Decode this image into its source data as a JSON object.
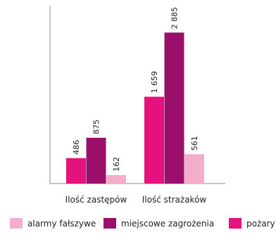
{
  "chart_data": {
    "type": "bar",
    "categories": [
      "Ilość zastępów",
      "Ilość strażaków"
    ],
    "series": [
      {
        "name": "pożary",
        "color": "#E5127D",
        "values": [
          486,
          1659
        ]
      },
      {
        "name": "miejscowe zagrożenia",
        "color": "#9A0F6A",
        "values": [
          875,
          2885
        ]
      },
      {
        "name": "alarmy fałszywe",
        "color": "#F4AECB",
        "values": [
          162,
          561
        ]
      }
    ],
    "data_labels": [
      [
        "486",
        "875",
        "162"
      ],
      [
        "1 659",
        "2 885",
        "561"
      ]
    ],
    "legend": {
      "placement": "bottom",
      "order": [
        "alarmy fałszywe",
        "miejscowe zagrożenia",
        "pożary"
      ]
    },
    "ylim": [
      0,
      3400
    ],
    "grid": false
  }
}
